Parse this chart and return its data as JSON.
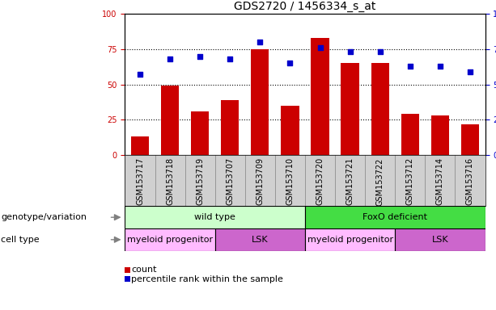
{
  "title": "GDS2720 / 1456334_s_at",
  "samples": [
    "GSM153717",
    "GSM153718",
    "GSM153719",
    "GSM153707",
    "GSM153709",
    "GSM153710",
    "GSM153720",
    "GSM153721",
    "GSM153722",
    "GSM153712",
    "GSM153714",
    "GSM153716"
  ],
  "counts": [
    13,
    49,
    31,
    39,
    75,
    35,
    83,
    65,
    65,
    29,
    28,
    22
  ],
  "percentiles": [
    57,
    68,
    70,
    68,
    80,
    65,
    76,
    73,
    73,
    63,
    63,
    59
  ],
  "bar_color": "#cc0000",
  "dot_color": "#0000cc",
  "genotype_groups": [
    {
      "label": "wild type",
      "start": 0,
      "end": 6,
      "color": "#ccffcc"
    },
    {
      "label": "FoxO deficient",
      "start": 6,
      "end": 12,
      "color": "#44dd44"
    }
  ],
  "cell_type_groups": [
    {
      "label": "myeloid progenitor",
      "start": 0,
      "end": 3,
      "color": "#ffbbff"
    },
    {
      "label": "LSK",
      "start": 3,
      "end": 6,
      "color": "#cc66cc"
    },
    {
      "label": "myeloid progenitor",
      "start": 6,
      "end": 9,
      "color": "#ffbbff"
    },
    {
      "label": "LSK",
      "start": 9,
      "end": 12,
      "color": "#cc66cc"
    }
  ],
  "ylim_left": [
    0,
    100
  ],
  "ylim_right": [
    0,
    100
  ],
  "yticks": [
    0,
    25,
    50,
    75,
    100
  ],
  "legend_count_label": "count",
  "legend_pct_label": "percentile rank within the sample",
  "genotype_label": "genotype/variation",
  "celltype_label": "cell type",
  "title_fontsize": 10,
  "tick_fontsize": 7,
  "label_fontsize": 8,
  "annotation_fontsize": 8,
  "xtick_bg_color": "#d0d0d0"
}
